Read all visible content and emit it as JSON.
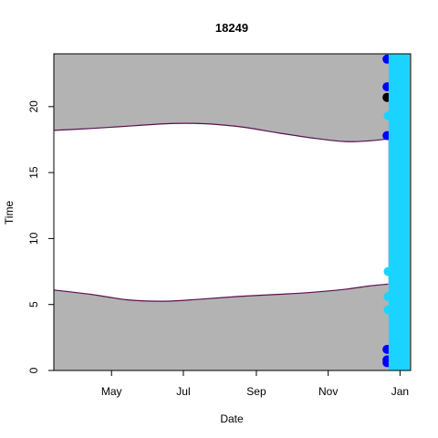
{
  "chart_data": {
    "type": "area",
    "title": "18249",
    "xlabel": "Date",
    "ylabel": "Time",
    "xlim": [
      "2023-03-13",
      "2024-01-10"
    ],
    "ylim": [
      0,
      24
    ],
    "x_ticks": [
      {
        "date": "2023-05-01",
        "label": "May"
      },
      {
        "date": "2023-07-01",
        "label": "Jul"
      },
      {
        "date": "2023-09-01",
        "label": "Sep"
      },
      {
        "date": "2023-11-01",
        "label": "Nov"
      },
      {
        "date": "2024-01-01",
        "label": "Jan"
      }
    ],
    "y_ticks": [
      0,
      5,
      10,
      15,
      20
    ],
    "night_fill_color": "#b3b3b3",
    "boundary_color": "#5b0f4f",
    "sunset": [
      {
        "date": "2023-03-13",
        "time": 18.2
      },
      {
        "date": "2023-04-15",
        "time": 18.35
      },
      {
        "date": "2023-05-20",
        "time": 18.55
      },
      {
        "date": "2023-06-20",
        "time": 18.72
      },
      {
        "date": "2023-07-20",
        "time": 18.7
      },
      {
        "date": "2023-08-20",
        "time": 18.45
      },
      {
        "date": "2023-09-20",
        "time": 18.0
      },
      {
        "date": "2023-10-20",
        "time": 17.6
      },
      {
        "date": "2023-11-15",
        "time": 17.35
      },
      {
        "date": "2023-12-05",
        "time": 17.4
      },
      {
        "date": "2023-12-22",
        "time": 17.55
      }
    ],
    "sunrise": [
      {
        "date": "2023-03-13",
        "time": 6.1
      },
      {
        "date": "2023-04-15",
        "time": 5.75
      },
      {
        "date": "2023-05-15",
        "time": 5.35
      },
      {
        "date": "2023-06-15",
        "time": 5.25
      },
      {
        "date": "2023-07-15",
        "time": 5.4
      },
      {
        "date": "2023-08-15",
        "time": 5.6
      },
      {
        "date": "2023-09-15",
        "time": 5.75
      },
      {
        "date": "2023-10-15",
        "time": 5.9
      },
      {
        "date": "2023-11-15",
        "time": 6.15
      },
      {
        "date": "2023-12-05",
        "time": 6.4
      },
      {
        "date": "2023-12-22",
        "time": 6.55
      }
    ],
    "observation_band": {
      "start": "2023-12-20",
      "end": "2024-01-09",
      "color": "#1ad4ff"
    },
    "points": [
      {
        "date": "2023-12-21",
        "time": 23.6,
        "color": "#0000ff"
      },
      {
        "date": "2023-12-21",
        "time": 21.5,
        "color": "#0000ff"
      },
      {
        "date": "2023-12-21",
        "time": 20.7,
        "color": "#000000"
      },
      {
        "date": "2023-12-21",
        "time": 17.8,
        "color": "#0000ff"
      },
      {
        "date": "2023-12-21",
        "time": 1.6,
        "color": "#0000ff"
      },
      {
        "date": "2023-12-21",
        "time": 0.8,
        "color": "#0000ff"
      },
      {
        "date": "2023-12-21",
        "time": 0.6,
        "color": "#0000ff"
      },
      {
        "date": "2023-12-22",
        "time": 7.5,
        "color": "#1ad4ff"
      },
      {
        "date": "2023-12-22",
        "time": 4.6,
        "color": "#1ad4ff"
      },
      {
        "date": "2023-12-22",
        "time": 5.6,
        "color": "#1ad4ff"
      },
      {
        "date": "2023-12-22",
        "time": 19.3,
        "color": "#1ad4ff"
      }
    ]
  }
}
